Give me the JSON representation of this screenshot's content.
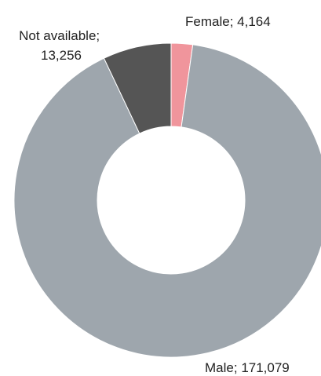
{
  "chart_data": {
    "type": "pie",
    "title": "",
    "hole": "donut",
    "legend": "none",
    "slices": [
      {
        "category": "Female",
        "value": 4164,
        "value_text": "4,164",
        "color": "#f0959c"
      },
      {
        "category": "Male",
        "value": 171079,
        "value_text": "171,079",
        "color": "#9ea6ad"
      },
      {
        "category": "Not available",
        "value": 13256,
        "value_text": "13,256",
        "color": "#555555"
      }
    ]
  }
}
